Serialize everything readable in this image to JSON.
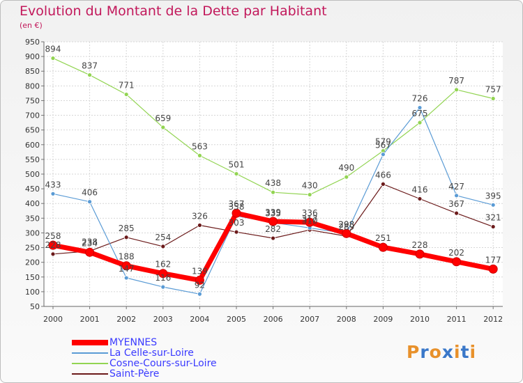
{
  "header": {
    "title": "Evolution du Montant de la Dette par Habitant",
    "subtitle": "(en €)"
  },
  "logo": {
    "text": "Proxiti",
    "colors": [
      "#e8912b",
      "#3a78c9",
      "#e8912b",
      "#3a78c9",
      "#e8912b",
      "#3a78c9",
      "#e8912b"
    ]
  },
  "chart_data": {
    "type": "line",
    "x": [
      "2000",
      "2001",
      "2002",
      "2003",
      "2004",
      "2005",
      "2006",
      "2007",
      "2008",
      "2009",
      "2010",
      "2011",
      "2012"
    ],
    "ylim": [
      50,
      950
    ],
    "yticks": [
      50,
      100,
      150,
      200,
      250,
      300,
      350,
      400,
      450,
      500,
      550,
      600,
      650,
      700,
      750,
      800,
      850,
      900,
      950
    ],
    "grid": true,
    "legend_position": "bottom-left",
    "series": [
      {
        "name": "Saint-Père",
        "color": "#6b1a1a",
        "width": 1.2,
        "marker": 3,
        "values": [
          228,
          238,
          285,
          254,
          326,
          303,
          282,
          310,
          289,
          466,
          416,
          367,
          321
        ]
      },
      {
        "name": "Cosne-Cours-sur-Loire",
        "color": "#92d452",
        "width": 1.2,
        "marker": 3,
        "values": [
          894,
          837,
          771,
          659,
          563,
          501,
          438,
          430,
          490,
          579,
          675,
          787,
          757
        ]
      },
      {
        "name": "La Celle-sur-Loire",
        "color": "#5a9bd5",
        "width": 1.2,
        "marker": 3,
        "values": [
          433,
          406,
          147,
          116,
          92,
          358,
          335,
          317,
          298,
          567,
          726,
          427,
          395
        ]
      },
      {
        "name": "MYENNES",
        "color": "#ff0000",
        "width": 7,
        "marker": 6,
        "values": [
          258,
          234,
          188,
          162,
          139,
          367,
          339,
          336,
          298,
          251,
          228,
          202,
          177
        ]
      }
    ]
  }
}
